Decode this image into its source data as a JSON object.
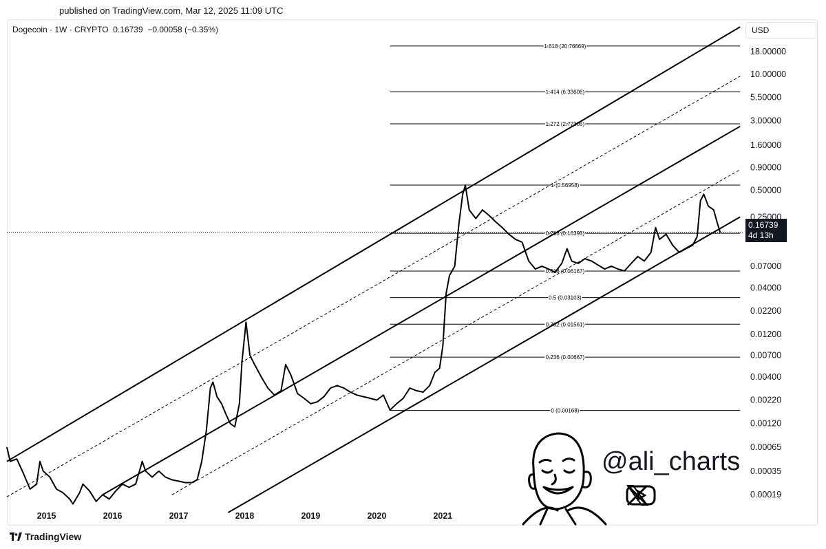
{
  "header": {
    "published": "published on TradingView.com, Mar 12, 2025 11:09 UTC",
    "legend": "Dogecoin · 1W · CRYPTO  0.16739  −0.00058 (−0.35%)",
    "currency": "USD"
  },
  "price_badge": {
    "price": "0.16739",
    "countdown": "4d 13h"
  },
  "watermark": {
    "handle": "@ali_charts",
    "icons": [
      "x-logo-icon",
      "youtube-icon",
      "caricature-face-icon"
    ]
  },
  "footer": {
    "brand": "TradingView"
  },
  "colors": {
    "line": "#000000",
    "badge": "#131722",
    "border": "#e0e3eb"
  },
  "chart_data": {
    "type": "line",
    "scale": "log",
    "ylim": [
      0.00012,
      40
    ],
    "xlim": [
      2014.4,
      2025.55
    ],
    "ytick_labels": [
      {
        "value": 18,
        "label": "18.00000"
      },
      {
        "value": 10,
        "label": "10.00000"
      },
      {
        "value": 5.5,
        "label": "5.50000"
      },
      {
        "value": 3,
        "label": "3.00000"
      },
      {
        "value": 1.6,
        "label": "1.60000"
      },
      {
        "value": 0.9,
        "label": "0.90000"
      },
      {
        "value": 0.5,
        "label": "0.50000"
      },
      {
        "value": 0.25,
        "label": "0.25000"
      },
      {
        "value": 0.07,
        "label": "0.07000"
      },
      {
        "value": 0.04,
        "label": "0.04000"
      },
      {
        "value": 0.022,
        "label": "0.02200"
      },
      {
        "value": 0.012,
        "label": "0.01200"
      },
      {
        "value": 0.007,
        "label": "0.00700"
      },
      {
        "value": 0.004,
        "label": "0.00400"
      },
      {
        "value": 0.0022,
        "label": "0.00220"
      },
      {
        "value": 0.0012,
        "label": "0.00120"
      },
      {
        "value": 0.00065,
        "label": "0.00065"
      },
      {
        "value": 0.00035,
        "label": "0.00035"
      },
      {
        "value": 0.00019,
        "label": "0.00019"
      }
    ],
    "xtick_labels": [
      {
        "value": 2015,
        "label": "2015"
      },
      {
        "value": 2016,
        "label": "2016"
      },
      {
        "value": 2017,
        "label": "2017"
      },
      {
        "value": 2018,
        "label": "2018"
      },
      {
        "value": 2019,
        "label": "2019"
      },
      {
        "value": 2020,
        "label": "2020"
      },
      {
        "value": 2021,
        "label": "2021"
      }
    ],
    "fib_levels": [
      {
        "label": "1.618 (20.76669)",
        "value": 20.76669
      },
      {
        "label": "1.414 (6.33606)",
        "value": 6.33606
      },
      {
        "label": "1.272 (2.77305)",
        "value": 2.77305
      },
      {
        "label": "1 (0.56958)",
        "value": 0.56958
      },
      {
        "label": "0.786 (0.16395)",
        "value": 0.16395
      },
      {
        "label": "0.618 (0.06167)",
        "value": 0.06167
      },
      {
        "label": "0.5 (0.03103)",
        "value": 0.03103
      },
      {
        "label": "0.382 (0.01561)",
        "value": 0.01561
      },
      {
        "label": "0.236 (0.00667)",
        "value": 0.00667
      },
      {
        "label": "0 (0.00168)",
        "value": 0.00168
      }
    ],
    "fib_x_range": [
      2020.2,
      2025.5
    ],
    "current_price": 0.16739,
    "channel_lines": [
      {
        "style": "solid",
        "points": [
          [
            2014.4,
            0.00045
          ],
          [
            2025.5,
            34
          ]
        ]
      },
      {
        "style": "dashed",
        "points": [
          [
            2014.4,
            0.00018
          ],
          [
            2025.5,
            9.5
          ]
        ]
      },
      {
        "style": "solid",
        "points": [
          [
            2015.85,
            0.00019
          ],
          [
            2025.5,
            2.6
          ]
        ]
      },
      {
        "style": "dashed",
        "points": [
          [
            2016.9,
            0.00019
          ],
          [
            2025.5,
            0.85
          ]
        ]
      },
      {
        "style": "solid",
        "points": [
          [
            2017.75,
            0.00012
          ],
          [
            2025.5,
            0.25
          ]
        ]
      }
    ],
    "series": [
      {
        "points": [
          [
            2014.4,
            0.00065
          ],
          [
            2014.45,
            0.00045
          ],
          [
            2014.55,
            0.00048
          ],
          [
            2014.65,
            0.00033
          ],
          [
            2014.75,
            0.00022
          ],
          [
            2014.85,
            0.00025
          ],
          [
            2014.9,
            0.00045
          ],
          [
            2014.95,
            0.00035
          ],
          [
            2015.05,
            0.0003
          ],
          [
            2015.15,
            0.00022
          ],
          [
            2015.25,
            0.0002
          ],
          [
            2015.35,
            0.00017
          ],
          [
            2015.4,
            0.00015
          ],
          [
            2015.5,
            0.0002
          ],
          [
            2015.55,
            0.00025
          ],
          [
            2015.65,
            0.00021
          ],
          [
            2015.75,
            0.00016
          ],
          [
            2015.85,
            0.00019
          ],
          [
            2015.95,
            0.00017
          ],
          [
            2016.05,
            0.00021
          ],
          [
            2016.15,
            0.00025
          ],
          [
            2016.25,
            0.00023
          ],
          [
            2016.35,
            0.00025
          ],
          [
            2016.45,
            0.00045
          ],
          [
            2016.5,
            0.00035
          ],
          [
            2016.6,
            0.0003
          ],
          [
            2016.7,
            0.00035
          ],
          [
            2016.8,
            0.0003
          ],
          [
            2016.9,
            0.00028
          ],
          [
            2017.0,
            0.00027
          ],
          [
            2017.1,
            0.00026
          ],
          [
            2017.2,
            0.00026
          ],
          [
            2017.28,
            0.00028
          ],
          [
            2017.35,
            0.00045
          ],
          [
            2017.42,
            0.001
          ],
          [
            2017.48,
            0.003
          ],
          [
            2017.52,
            0.0035
          ],
          [
            2017.58,
            0.0024
          ],
          [
            2017.65,
            0.002
          ],
          [
            2017.72,
            0.0015
          ],
          [
            2017.78,
            0.0012
          ],
          [
            2017.85,
            0.0011
          ],
          [
            2017.92,
            0.002
          ],
          [
            2017.96,
            0.006
          ],
          [
            2018.02,
            0.0165
          ],
          [
            2018.08,
            0.007
          ],
          [
            2018.15,
            0.0055
          ],
          [
            2018.25,
            0.004
          ],
          [
            2018.35,
            0.003
          ],
          [
            2018.45,
            0.0025
          ],
          [
            2018.55,
            0.0028
          ],
          [
            2018.62,
            0.0055
          ],
          [
            2018.7,
            0.0042
          ],
          [
            2018.8,
            0.0026
          ],
          [
            2018.9,
            0.0023
          ],
          [
            2019.0,
            0.002
          ],
          [
            2019.1,
            0.0021
          ],
          [
            2019.2,
            0.0024
          ],
          [
            2019.3,
            0.003
          ],
          [
            2019.4,
            0.0032
          ],
          [
            2019.5,
            0.003
          ],
          [
            2019.6,
            0.0027
          ],
          [
            2019.7,
            0.0025
          ],
          [
            2019.8,
            0.0024
          ],
          [
            2019.9,
            0.0023
          ],
          [
            2020.0,
            0.0022
          ],
          [
            2020.1,
            0.0025
          ],
          [
            2020.2,
            0.0017
          ],
          [
            2020.3,
            0.002
          ],
          [
            2020.4,
            0.0023
          ],
          [
            2020.5,
            0.003
          ],
          [
            2020.6,
            0.0028
          ],
          [
            2020.7,
            0.0027
          ],
          [
            2020.8,
            0.0032
          ],
          [
            2020.88,
            0.0045
          ],
          [
            2020.95,
            0.005
          ],
          [
            2021.0,
            0.009
          ],
          [
            2021.05,
            0.035
          ],
          [
            2021.1,
            0.055
          ],
          [
            2021.18,
            0.07
          ],
          [
            2021.24,
            0.2
          ],
          [
            2021.3,
            0.45
          ],
          [
            2021.34,
            0.56958
          ],
          [
            2021.4,
            0.3
          ],
          [
            2021.5,
            0.24
          ],
          [
            2021.6,
            0.3
          ],
          [
            2021.7,
            0.26
          ],
          [
            2021.8,
            0.22
          ],
          [
            2021.9,
            0.19
          ],
          [
            2022.0,
            0.16
          ],
          [
            2022.1,
            0.14
          ],
          [
            2022.2,
            0.13
          ],
          [
            2022.3,
            0.08
          ],
          [
            2022.4,
            0.065
          ],
          [
            2022.5,
            0.07
          ],
          [
            2022.6,
            0.065
          ],
          [
            2022.7,
            0.06
          ],
          [
            2022.8,
            0.075
          ],
          [
            2022.88,
            0.11
          ],
          [
            2022.95,
            0.08
          ],
          [
            2023.05,
            0.075
          ],
          [
            2023.15,
            0.085
          ],
          [
            2023.25,
            0.08
          ],
          [
            2023.35,
            0.072
          ],
          [
            2023.45,
            0.065
          ],
          [
            2023.55,
            0.07
          ],
          [
            2023.65,
            0.065
          ],
          [
            2023.75,
            0.062
          ],
          [
            2023.85,
            0.075
          ],
          [
            2023.95,
            0.09
          ],
          [
            2024.05,
            0.08
          ],
          [
            2024.15,
            0.1
          ],
          [
            2024.22,
            0.19
          ],
          [
            2024.28,
            0.14
          ],
          [
            2024.38,
            0.16
          ],
          [
            2024.48,
            0.12
          ],
          [
            2024.58,
            0.1
          ],
          [
            2024.68,
            0.11
          ],
          [
            2024.78,
            0.12
          ],
          [
            2024.85,
            0.15
          ],
          [
            2024.9,
            0.38
          ],
          [
            2024.95,
            0.45
          ],
          [
            2025.02,
            0.33
          ],
          [
            2025.1,
            0.3
          ],
          [
            2025.15,
            0.22
          ],
          [
            2025.2,
            0.16739
          ]
        ]
      }
    ]
  }
}
